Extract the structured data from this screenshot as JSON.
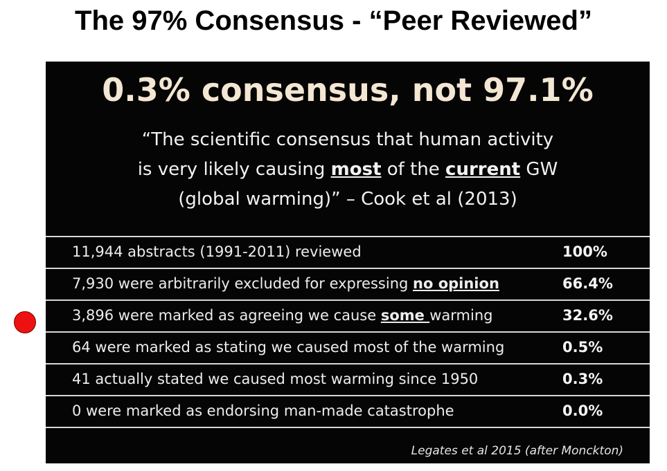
{
  "title": "The 97% Consensus -  “Peer Reviewed”",
  "panel": {
    "heading": "0.3% consensus, not 97.1%",
    "quote": {
      "line1": "“The scientific consensus that human activity",
      "line2_before": "is very likely causing ",
      "line2_emph1": "most",
      "line2_mid": " of the ",
      "line2_emph2": "current",
      "line2_after": " GW",
      "line3": "(global warming)” – Cook et al (2013)"
    },
    "rows": [
      {
        "text": "11,944 abstracts (1991-2011) reviewed",
        "emph": "",
        "after": "",
        "pct": "100%"
      },
      {
        "text": "7,930 were arbitrarily excluded for expressing ",
        "emph": "no opinion",
        "after": "",
        "pct": "66.4%"
      },
      {
        "text": "3,896 were marked as agreeing we cause ",
        "emph": "some ",
        "after": "warming",
        "pct": "32.6%"
      },
      {
        "text": "64 were marked as stating we caused most of the warming",
        "emph": "",
        "after": "",
        "pct": "0.5%"
      },
      {
        "text": "41 actually stated we caused most warming since 1950",
        "emph": "",
        "after": "",
        "pct": "0.3%"
      },
      {
        "text": "0 were marked as endorsing man-made catastrophe",
        "emph": "",
        "after": "",
        "pct": "0.0%"
      }
    ],
    "citation": "Legates et al 2015  (after Monckton)"
  },
  "colors": {
    "panel_background": "#050505",
    "heading": "#f3e6d2",
    "marker": "#ee1111"
  },
  "marker": {
    "icon": "red-dot-marker-icon"
  }
}
